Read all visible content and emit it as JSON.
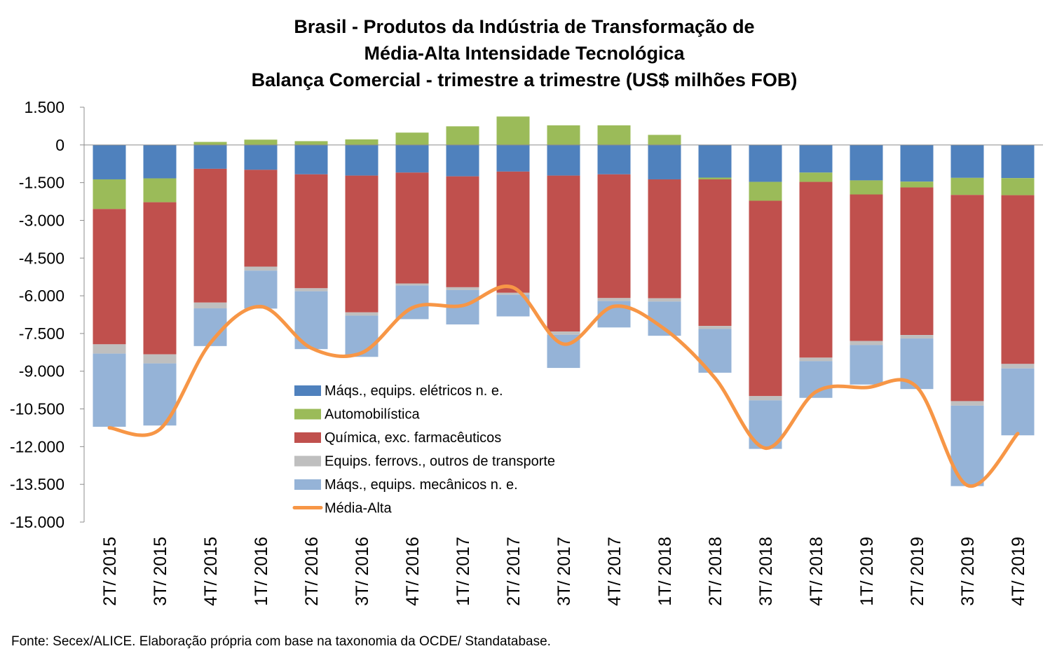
{
  "chart_data": {
    "type": "bar",
    "title_lines": [
      "Brasil - Produtos da Indústria de Transformação de",
      "Média-Alta Intensidade Tecnológica",
      "Balança Comercial - trimestre a trimestre (US$ milhões FOB)"
    ],
    "xlabel": "",
    "ylabel": "",
    "ylim": [
      -15000,
      1500
    ],
    "yticks": [
      1500,
      0,
      -1500,
      -3000,
      -4500,
      -6000,
      -7500,
      -9000,
      -10500,
      -12000,
      -13500,
      -15000
    ],
    "ytick_labels": [
      "1.500",
      "0",
      "-1.500",
      "-3.000",
      "-4.500",
      "-6.000",
      "-7.500",
      "-9.000",
      "-10.500",
      "-12.000",
      "-13.500",
      "-15.000"
    ],
    "grid": false,
    "legend_position": "center-left",
    "categories": [
      "2T/ 2015",
      "3T/ 2015",
      "4T/ 2015",
      "1T/ 2016",
      "2T/ 2016",
      "3T/ 2016",
      "4T/ 2016",
      "1T/ 2017",
      "2T/ 2017",
      "3T/ 2017",
      "4T/ 2017",
      "1T/ 2018",
      "2T/ 2018",
      "3T/ 2018",
      "4T/ 2018",
      "1T/ 2019",
      "2T/ 2019",
      "3T/ 2019",
      "4T/ 2019"
    ],
    "series": [
      {
        "name": "Máqs., equips. elétricos n. e.",
        "kind": "bar",
        "color": "#4F81BD",
        "values": [
          -1370,
          -1330,
          -950,
          -990,
          -1170,
          -1220,
          -1100,
          -1250,
          -1060,
          -1220,
          -1170,
          -1370,
          -1300,
          -1470,
          -1100,
          -1410,
          -1460,
          -1310,
          -1320
        ]
      },
      {
        "name": "Automobilística",
        "kind": "bar",
        "color": "#9BBB59",
        "values": [
          -1180,
          -950,
          120,
          210,
          150,
          220,
          490,
          740,
          1130,
          780,
          780,
          400,
          -70,
          -750,
          -370,
          -560,
          -230,
          -680,
          -680
        ]
      },
      {
        "name": "Química, exc. farmacêuticos",
        "kind": "bar",
        "color": "#C0504D",
        "values": [
          -5380,
          -6050,
          -5320,
          -3850,
          -4530,
          -5440,
          -4410,
          -4410,
          -4820,
          -6200,
          -4920,
          -4730,
          -5830,
          -7770,
          -6990,
          -5830,
          -5870,
          -8200,
          -6710
        ]
      },
      {
        "name": "Equips. ferrovs., outros de transporte",
        "kind": "bar",
        "color": "#BFBFBF",
        "values": [
          -370,
          -360,
          -230,
          -160,
          -120,
          -130,
          -80,
          -110,
          -80,
          -130,
          -120,
          -130,
          -120,
          -170,
          -140,
          -160,
          -140,
          -180,
          -180
        ]
      },
      {
        "name": "Máqs., equips. mecânicos  n. e.",
        "kind": "bar",
        "color": "#95B3D7",
        "values": [
          -2910,
          -2470,
          -1500,
          -1510,
          -2300,
          -1640,
          -1340,
          -1370,
          -860,
          -1320,
          -1050,
          -1360,
          -1740,
          -1930,
          -1460,
          -1570,
          -2010,
          -3200,
          -2660
        ]
      },
      {
        "name": "Média-Alta",
        "kind": "line",
        "color": "#F79646",
        "values": [
          -11250,
          -11310,
          -7880,
          -6430,
          -8080,
          -8270,
          -6480,
          -6390,
          -5670,
          -7920,
          -6420,
          -7320,
          -9270,
          -12060,
          -9820,
          -9650,
          -9630,
          -13540,
          -11480
        ]
      }
    ]
  },
  "source": "Fonte: Secex/ALICE. Elaboração própria com base na taxonomia da OCDE/ Standatabase."
}
